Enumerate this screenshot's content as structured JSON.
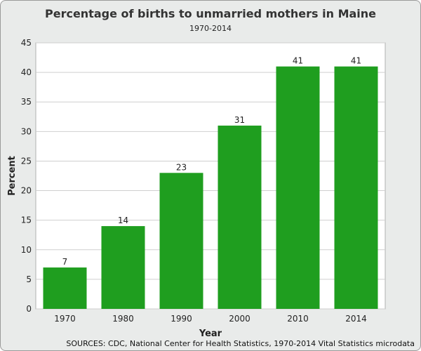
{
  "chart_data": {
    "type": "bar",
    "title": "Percentage of births to unmarried mothers in Maine",
    "subtitle": "1970-2014",
    "xlabel": "Year",
    "ylabel": "Percent",
    "categories": [
      "1970",
      "1980",
      "1990",
      "2000",
      "2010",
      "2014"
    ],
    "values": [
      7,
      14,
      23,
      31,
      41,
      41
    ],
    "ylim": [
      0,
      45
    ],
    "yticks": [
      0,
      5,
      10,
      15,
      20,
      25,
      30,
      35,
      40,
      45
    ],
    "grid": true,
    "legend": "none",
    "bar_color": "#1f9e1f",
    "source": "SOURCES: CDC, National Center for Health Statistics, 1970-2014 Vital Statistics microdata"
  }
}
